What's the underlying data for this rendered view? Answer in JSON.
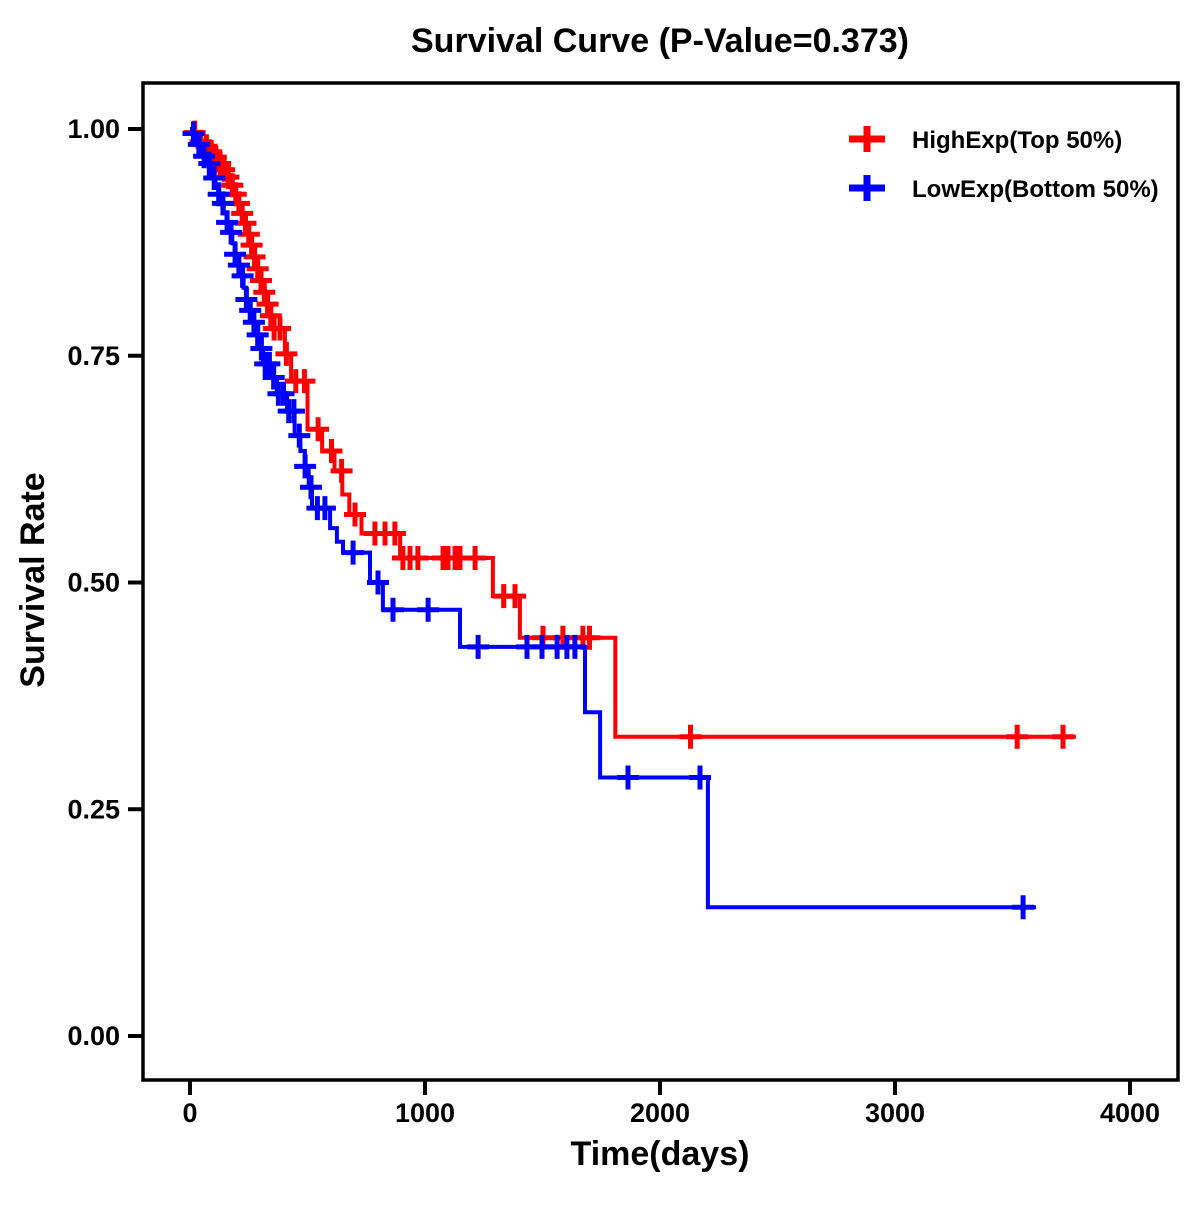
{
  "title": "Survival Curve (P-Value=0.373)",
  "axes": {
    "xlabel": "Time(days)",
    "ylabel": "Survival Rate",
    "x_tick_labels": [
      "0",
      "1000",
      "2000",
      "3000",
      "4000"
    ],
    "y_tick_labels": [
      "1.00",
      "0.75",
      "0.50",
      "0.25",
      "0.00"
    ]
  },
  "legend": {
    "position": "top-right",
    "entries": [
      {
        "label": "HighExp(Top 50%)",
        "color": "#FF0000",
        "marker": "plus-censor-icon"
      },
      {
        "label": "LowExp(Bottom 50%)",
        "color": "#0000FF",
        "marker": "plus-censor-icon"
      }
    ]
  },
  "chart_data": {
    "type": "line",
    "subtype": "kaplan_meier_step",
    "title": "Survival Curve (P-Value=0.373)",
    "p_value": 0.373,
    "xlabel": "Time(days)",
    "ylabel": "Survival Rate",
    "xlim": [
      0,
      4200
    ],
    "ylim": [
      0.0,
      1.0
    ],
    "x_ticks": [
      0,
      1000,
      2000,
      3000,
      4000
    ],
    "y_ticks": [
      1.0,
      0.75,
      0.5,
      0.25,
      0.0
    ],
    "grid": false,
    "legend_position": "top-right",
    "series": [
      {
        "name": "HighExp(Top 50%)",
        "color": "#FF0000",
        "steps": [
          [
            0,
            1.0
          ],
          [
            15,
            0.996
          ],
          [
            30,
            0.991
          ],
          [
            45,
            0.986
          ],
          [
            60,
            0.981
          ],
          [
            78,
            0.975
          ],
          [
            95,
            0.969
          ],
          [
            112,
            0.962
          ],
          [
            130,
            0.955
          ],
          [
            150,
            0.947
          ],
          [
            168,
            0.938
          ],
          [
            184,
            0.928
          ],
          [
            198,
            0.918
          ],
          [
            212,
            0.907
          ],
          [
            226,
            0.896
          ],
          [
            240,
            0.884
          ],
          [
            254,
            0.872
          ],
          [
            268,
            0.859
          ],
          [
            282,
            0.846
          ],
          [
            296,
            0.833
          ],
          [
            310,
            0.82
          ],
          [
            325,
            0.807
          ],
          [
            340,
            0.794
          ],
          [
            353,
            0.78
          ],
          [
            404,
            0.752
          ],
          [
            430,
            0.722
          ],
          [
            500,
            0.669
          ],
          [
            562,
            0.645
          ],
          [
            615,
            0.623
          ],
          [
            648,
            0.597
          ],
          [
            678,
            0.575
          ],
          [
            730,
            0.554
          ],
          [
            894,
            0.527
          ],
          [
            1289,
            0.485
          ],
          [
            1404,
            0.439
          ],
          [
            1810,
            0.33
          ]
        ],
        "censor_times": [
          20,
          45,
          70,
          90,
          110,
          128,
          145,
          163,
          180,
          195,
          208,
          222,
          236,
          250,
          262,
          275,
          288,
          302,
          316,
          330,
          344,
          358,
          383,
          410,
          450,
          487,
          545,
          602,
          645,
          702,
          787,
          830,
          872,
          906,
          936,
          970,
          1077,
          1098,
          1128,
          1149,
          1213,
          1335,
          1383,
          1502,
          1587,
          1672,
          1700,
          2130,
          3520,
          3715
        ],
        "end_time": 3770
      },
      {
        "name": "LowExp(Bottom 50%)",
        "color": "#0000FF",
        "steps": [
          [
            0,
            1.0
          ],
          [
            12,
            0.995
          ],
          [
            24,
            0.989
          ],
          [
            36,
            0.983
          ],
          [
            48,
            0.977
          ],
          [
            60,
            0.97
          ],
          [
            72,
            0.962
          ],
          [
            84,
            0.954
          ],
          [
            96,
            0.946
          ],
          [
            108,
            0.937
          ],
          [
            120,
            0.928
          ],
          [
            132,
            0.918
          ],
          [
            144,
            0.908
          ],
          [
            156,
            0.897
          ],
          [
            168,
            0.886
          ],
          [
            180,
            0.874
          ],
          [
            192,
            0.862
          ],
          [
            204,
            0.85
          ],
          [
            216,
            0.838
          ],
          [
            228,
            0.825
          ],
          [
            240,
            0.812
          ],
          [
            252,
            0.8
          ],
          [
            266,
            0.787
          ],
          [
            280,
            0.773
          ],
          [
            295,
            0.758
          ],
          [
            311,
            0.741
          ],
          [
            340,
            0.726
          ],
          [
            370,
            0.708
          ],
          [
            413,
            0.689
          ],
          [
            445,
            0.662
          ],
          [
            470,
            0.645
          ],
          [
            489,
            0.628
          ],
          [
            505,
            0.605
          ],
          [
            519,
            0.582
          ],
          [
            596,
            0.56
          ],
          [
            625,
            0.545
          ],
          [
            651,
            0.533
          ],
          [
            766,
            0.5
          ],
          [
            821,
            0.47
          ],
          [
            1149,
            0.429
          ],
          [
            1681,
            0.357
          ],
          [
            1745,
            0.285
          ],
          [
            2204,
            0.142
          ]
        ],
        "censor_times": [
          15,
          38,
          60,
          82,
          103,
          122,
          140,
          158,
          175,
          192,
          208,
          224,
          240,
          256,
          272,
          288,
          304,
          320,
          338,
          356,
          376,
          398,
          420,
          442,
          465,
          490,
          515,
          542,
          574,
          694,
          800,
          864,
          1013,
          1226,
          1434,
          1498,
          1562,
          1604,
          1638,
          1864,
          2170,
          3545
        ],
        "end_time": 3600
      }
    ]
  }
}
